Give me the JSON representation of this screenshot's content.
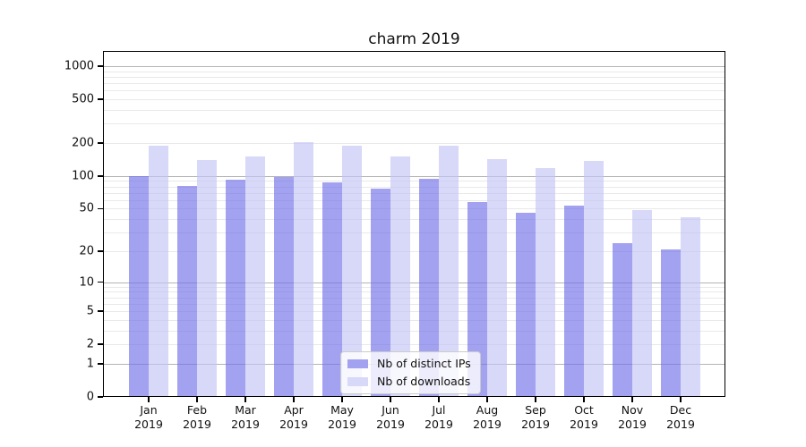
{
  "chart_data": {
    "type": "bar",
    "title": "charm 2019",
    "categories": [
      "Jan",
      "Feb",
      "Mar",
      "Apr",
      "May",
      "Jun",
      "Jul",
      "Aug",
      "Sep",
      "Oct",
      "Nov",
      "Dec"
    ],
    "year_label": "2019",
    "series": [
      {
        "name": "Nb of distinct IPs",
        "color": "#a2a2f0",
        "bar_rgba": "rgba(112,112,232,0.65)",
        "values": [
          100,
          81,
          92,
          98,
          87,
          76,
          94,
          58,
          46,
          53,
          24,
          21
        ]
      },
      {
        "name": "Nb of downloads",
        "color": "#d8d8f8",
        "bar_rgba": "rgba(195,195,244,0.65)",
        "values": [
          190,
          140,
          152,
          203,
          188,
          151,
          190,
          143,
          118,
          137,
          49,
          42
        ]
      }
    ],
    "yticks": [
      0,
      1,
      2,
      5,
      10,
      20,
      50,
      100,
      200,
      500,
      1000
    ],
    "scale": "log1p",
    "ylim": [
      0,
      1377
    ],
    "grid": {
      "on": true,
      "major_color": "#b4b4b4",
      "minor_color": "#e9e9e9"
    },
    "legend_position": "bottom-center",
    "axis_color": "#000000",
    "text_color": "#111111"
  }
}
